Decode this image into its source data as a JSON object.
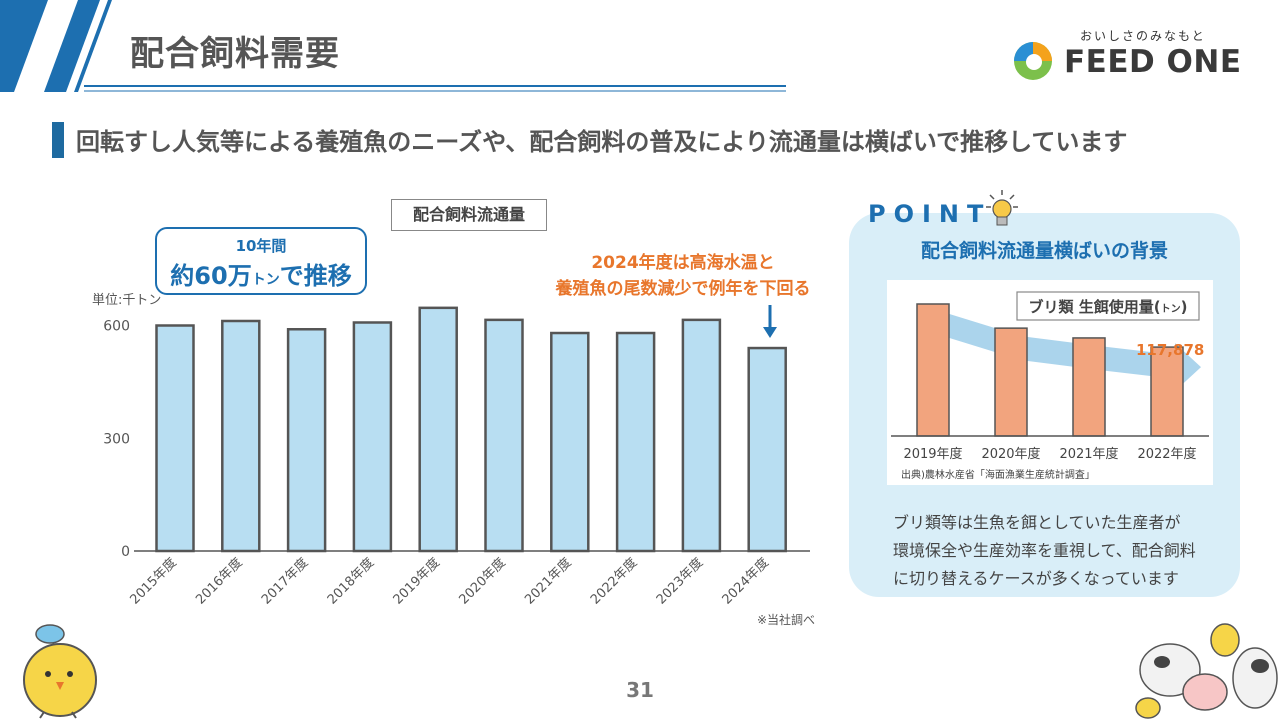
{
  "header": {
    "title": "配合飼料需要",
    "logo_tagline": "おいしさのみなもと",
    "logo_name": "FEED ONE"
  },
  "subtitle": "回転すし人気等による養殖魚のニーズや、配合飼料の普及により流通量は横ばいで推移しています",
  "main_chart": {
    "callout_line1": "10年間",
    "callout_line2_prefix": "約60万",
    "callout_line2_unit": "トン",
    "callout_line2_suffix": "で推移",
    "box_title": "配合飼料流通量",
    "note_line1": "2024年度は高海水温と",
    "note_line2": "養殖魚の尾数減少で例年を下回る",
    "source_note": "※当社調べ"
  },
  "chart_data": [
    {
      "type": "bar",
      "title": "配合飼料流通量",
      "unit_label": "単位:千トン",
      "categories": [
        "2015年度",
        "2016年度",
        "2017年度",
        "2018年度",
        "2019年度",
        "2020年度",
        "2021年度",
        "2022年度",
        "2023年度",
        "2024年度"
      ],
      "values": [
        600,
        612,
        590,
        608,
        647,
        615,
        580,
        580,
        615,
        540
      ],
      "yticks": [
        "600",
        "300",
        "0"
      ],
      "ytick_values": [
        600,
        300,
        0
      ],
      "ylim": [
        0,
        680
      ],
      "bar_color": "#b8def2",
      "bar_border": "#555555"
    },
    {
      "type": "bar",
      "title": "ブリ類 生餌使用量(トン)",
      "title_prefix": "ブリ類 生餌使用量(",
      "title_unit": "トン",
      "title_suffix": ")",
      "categories": [
        "2019年度",
        "2020年度",
        "2021年度",
        "2022年度"
      ],
      "values": [
        175000,
        143000,
        130000,
        117878
      ],
      "label_text": "117,878",
      "source": "出典)農林水産省「海面漁業生産統計調査」",
      "bar_color": "#f2a47e",
      "bar_border": "#555555",
      "label_color": "#e8762c"
    }
  ],
  "point": {
    "label": "POINT",
    "heading": "配合飼料流通量横ばいの背景",
    "desc_line1": "ブリ類等は生魚を餌としていた生産者が",
    "desc_line2": "環境保全や生産効率を重視して、配合飼料",
    "desc_line3": "に切り替えるケースが多くなっています"
  },
  "page_number": "31",
  "colors": {
    "accent_blue": "#1d6fb0",
    "accent_orange": "#e8762c",
    "panel_bg": "#d9eef8"
  }
}
